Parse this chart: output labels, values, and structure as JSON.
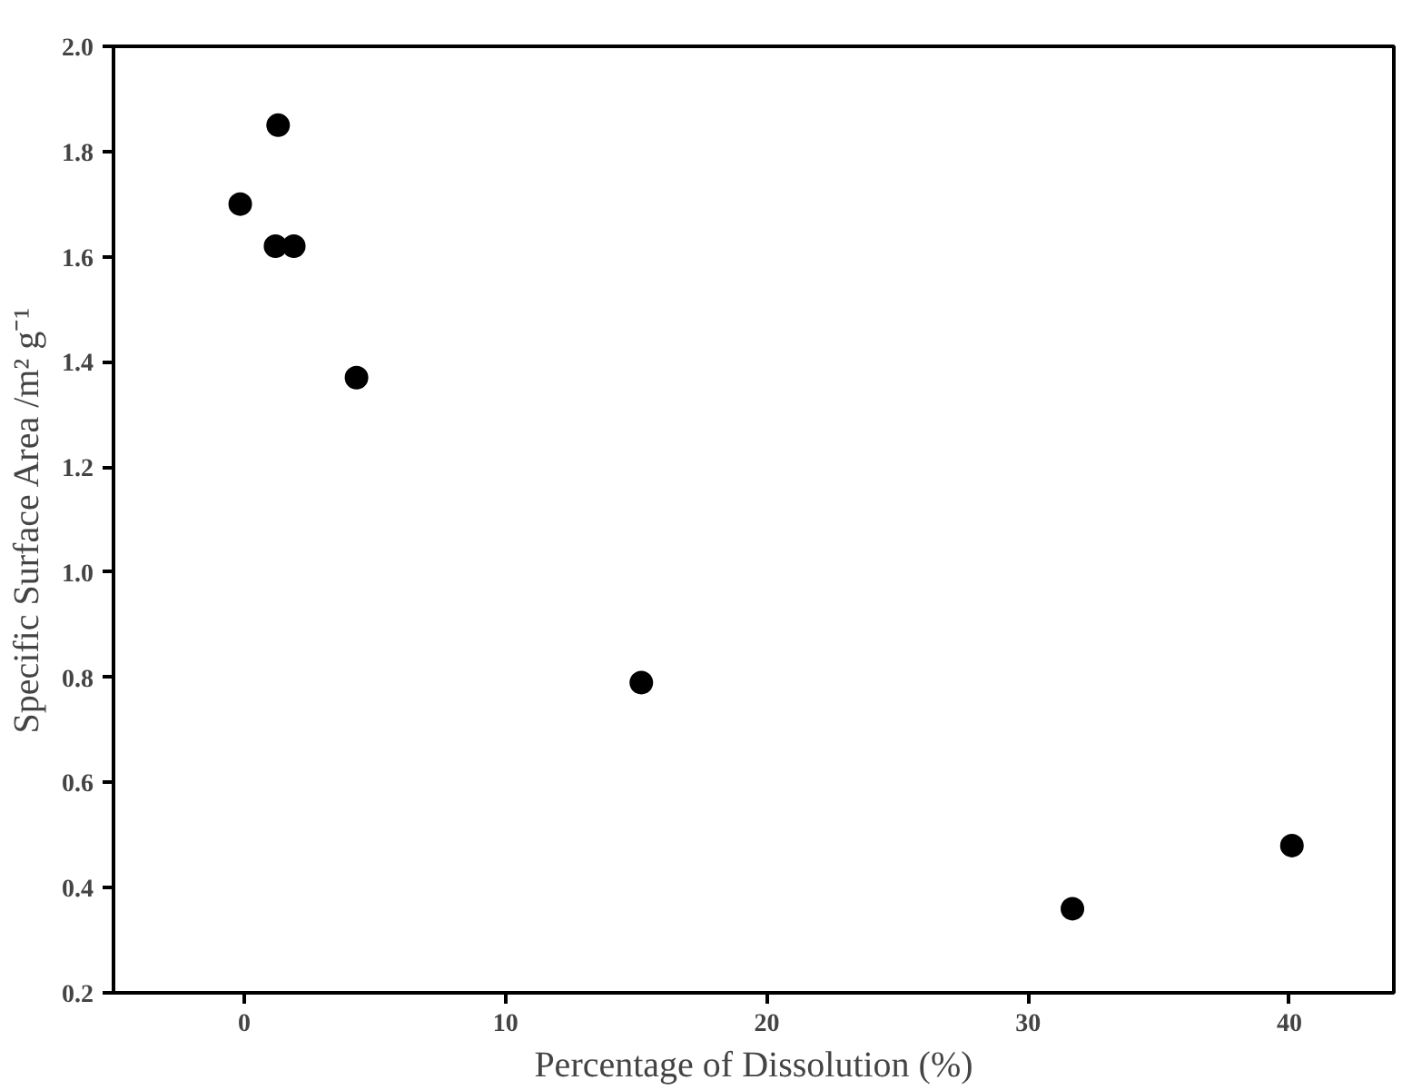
{
  "chart_data": {
    "type": "scatter",
    "xlabel": "Percentage of Dissolution (%)",
    "ylabel": "Specific Surface Area /m² g⁻¹",
    "series": [
      {
        "color": "#000000",
        "x": [
          -0.15,
          1.3,
          1.2,
          1.9,
          4.3,
          15.2,
          31.7,
          40.1
        ],
        "values": [
          1.7,
          1.85,
          1.62,
          1.62,
          1.37,
          0.79,
          0.36,
          0.48
        ]
      }
    ],
    "xlim": [
      -5,
      44
    ],
    "ylim": [
      0.2,
      2.0
    ],
    "xticks": [
      0,
      10,
      20,
      30,
      40
    ],
    "yticks": [
      0.2,
      0.4,
      0.6,
      0.8,
      {
        "value": 1,
        "label": "1.0"
      },
      1.2,
      1.4,
      1.6,
      1.8,
      {
        "value": 2,
        "label": "2.0"
      }
    ],
    "marker": "circle"
  }
}
